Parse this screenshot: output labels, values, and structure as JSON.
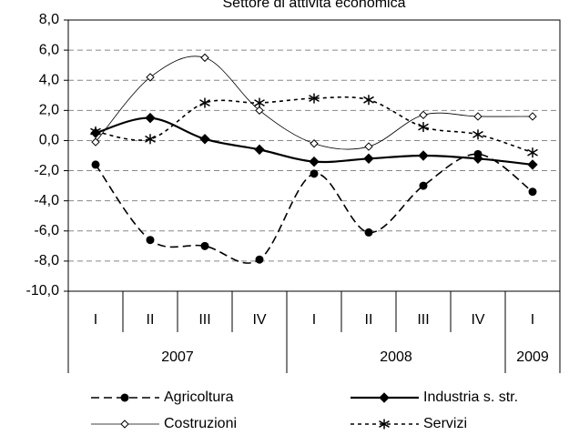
{
  "chart_data": {
    "type": "line",
    "title": "Settore di attività economica",
    "categories": [
      "I",
      "II",
      "III",
      "IV",
      "I",
      "II",
      "III",
      "IV",
      "I"
    ],
    "category_groups": [
      {
        "label": "2007",
        "span": 4
      },
      {
        "label": "2008",
        "span": 4
      },
      {
        "label": "2009",
        "span": 1
      }
    ],
    "ylim": [
      -10,
      8
    ],
    "yticks": [
      {
        "value": -10,
        "label": "-10,0"
      },
      {
        "value": -8,
        "label": "-8,0"
      },
      {
        "value": -6,
        "label": "-6,0"
      },
      {
        "value": -4,
        "label": "-4,0"
      },
      {
        "value": -2,
        "label": "-2,0"
      },
      {
        "value": 0,
        "label": "0,0"
      },
      {
        "value": 2,
        "label": "2,0"
      },
      {
        "value": 4,
        "label": "4,0"
      },
      {
        "value": 6,
        "label": "6,0"
      },
      {
        "value": 8,
        "label": "8,0"
      }
    ],
    "grid": true,
    "series": [
      {
        "name": "Agricoltura",
        "color": "#000000",
        "marker": "circle",
        "dash": "9,5",
        "width": 1.6,
        "values": [
          -1.6,
          -6.6,
          -7.0,
          -7.9,
          -2.2,
          -6.1,
          -3.0,
          -0.9,
          -3.4
        ]
      },
      {
        "name": "Industria s. str.",
        "color": "#000000",
        "marker": "diamond-filled",
        "dash": "none",
        "width": 2.2,
        "values": [
          0.5,
          1.5,
          0.1,
          -0.6,
          -1.4,
          -1.2,
          -1.0,
          -1.2,
          -1.6
        ]
      },
      {
        "name": "Costruzioni",
        "color": "#000000",
        "marker": "diamond-open",
        "dash": "none",
        "width": 0.8,
        "values": [
          -0.1,
          4.2,
          5.5,
          2.0,
          -0.2,
          -0.4,
          1.7,
          1.6,
          1.6
        ]
      },
      {
        "name": "Servizi",
        "color": "#000000",
        "marker": "asterisk",
        "dash": "4,4",
        "width": 1.6,
        "values": [
          0.6,
          0.1,
          2.5,
          2.5,
          2.8,
          2.7,
          0.9,
          0.4,
          -0.8
        ]
      }
    ]
  }
}
